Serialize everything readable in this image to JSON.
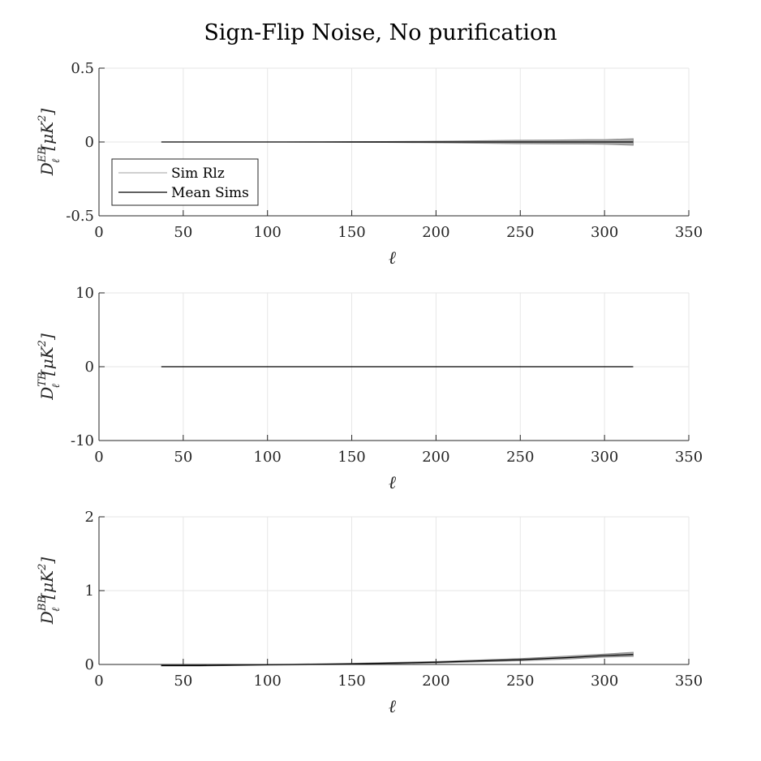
{
  "figure": {
    "title": "Sign-Flip Noise, No purification"
  },
  "chart_data": [
    {
      "type": "line",
      "ylabel": {
        "base": "D",
        "sup": "EB",
        "sub": "ℓ",
        "units": "[μK",
        "units_sup": "2",
        "units_end": "]"
      },
      "xlabel": "ℓ",
      "xlim": [
        0,
        350
      ],
      "ylim": [
        -0.5,
        0.5
      ],
      "xticks": [
        0,
        50,
        100,
        150,
        200,
        250,
        300,
        350
      ],
      "yticks": [
        -0.5,
        0,
        0.5
      ],
      "ytick_labels": [
        "-0.5",
        "0",
        "0.5"
      ],
      "grid": true,
      "legend": {
        "placement": "lower-left",
        "entries": [
          "Sim Rlz",
          "Mean Sims"
        ]
      },
      "series": [
        {
          "name": "Sim Rlz",
          "color": "#8c8c8c",
          "x": [
            37,
            50,
            70,
            90,
            110,
            130,
            150,
            170,
            190,
            210,
            230,
            250,
            270,
            290,
            300,
            317
          ],
          "y_low": [
            0,
            0,
            0,
            0,
            0,
            -0.001,
            -0.002,
            -0.003,
            -0.004,
            -0.006,
            -0.009,
            -0.012,
            -0.013,
            -0.014,
            -0.015,
            -0.022
          ],
          "y_high": [
            0,
            0,
            0,
            0,
            0,
            0.001,
            0.002,
            0.003,
            0.004,
            0.006,
            0.009,
            0.012,
            0.013,
            0.016,
            0.016,
            0.022
          ]
        },
        {
          "name": "Mean Sims",
          "color": "#000000",
          "x": [
            37,
            100,
            150,
            200,
            250,
            317
          ],
          "y": [
            0,
            0,
            0,
            0,
            0,
            0
          ]
        }
      ]
    },
    {
      "type": "line",
      "ylabel": {
        "base": "D",
        "sup": "TB",
        "sub": "ℓ",
        "units": "[μK",
        "units_sup": "2",
        "units_end": "]"
      },
      "xlabel": "ℓ",
      "xlim": [
        0,
        350
      ],
      "ylim": [
        -10,
        10
      ],
      "xticks": [
        0,
        50,
        100,
        150,
        200,
        250,
        300,
        350
      ],
      "yticks": [
        -10,
        0,
        10
      ],
      "ytick_labels": [
        "-10",
        "0",
        "10"
      ],
      "grid": true,
      "series": [
        {
          "name": "Sim Rlz",
          "color": "#8c8c8c",
          "x": [
            37,
            100,
            200,
            317
          ],
          "y_low": [
            0,
            0,
            0,
            0
          ],
          "y_high": [
            0,
            0,
            0,
            0
          ]
        },
        {
          "name": "Mean Sims",
          "color": "#000000",
          "x": [
            37,
            100,
            200,
            317
          ],
          "y": [
            0,
            0,
            0,
            0
          ]
        }
      ]
    },
    {
      "type": "line",
      "ylabel": {
        "base": "D",
        "sup": "BB",
        "sub": "ℓ",
        "units": "[μK",
        "units_sup": "2",
        "units_end": "]"
      },
      "xlabel": "ℓ",
      "xlim": [
        0,
        350
      ],
      "ylim": [
        0,
        2
      ],
      "xticks": [
        0,
        50,
        100,
        150,
        200,
        250,
        300,
        350
      ],
      "yticks": [
        0,
        1,
        2
      ],
      "ytick_labels": [
        "0",
        "1",
        "2"
      ],
      "grid": true,
      "series": [
        {
          "name": "Sim Rlz",
          "color": "#8c8c8c",
          "x": [
            37,
            60,
            100,
            150,
            200,
            250,
            280,
            300,
            317
          ],
          "y_low": [
            -0.02,
            -0.02,
            -0.01,
            0.0,
            0.02,
            0.05,
            0.075,
            0.1,
            0.11
          ],
          "y_high": [
            -0.01,
            -0.01,
            0.0,
            0.015,
            0.04,
            0.08,
            0.115,
            0.14,
            0.165
          ]
        },
        {
          "name": "Mean Sims",
          "color": "#000000",
          "x": [
            37,
            60,
            100,
            150,
            200,
            250,
            280,
            300,
            317
          ],
          "y": [
            -0.015,
            -0.015,
            -0.005,
            0.008,
            0.03,
            0.065,
            0.095,
            0.12,
            0.135
          ]
        }
      ]
    }
  ]
}
